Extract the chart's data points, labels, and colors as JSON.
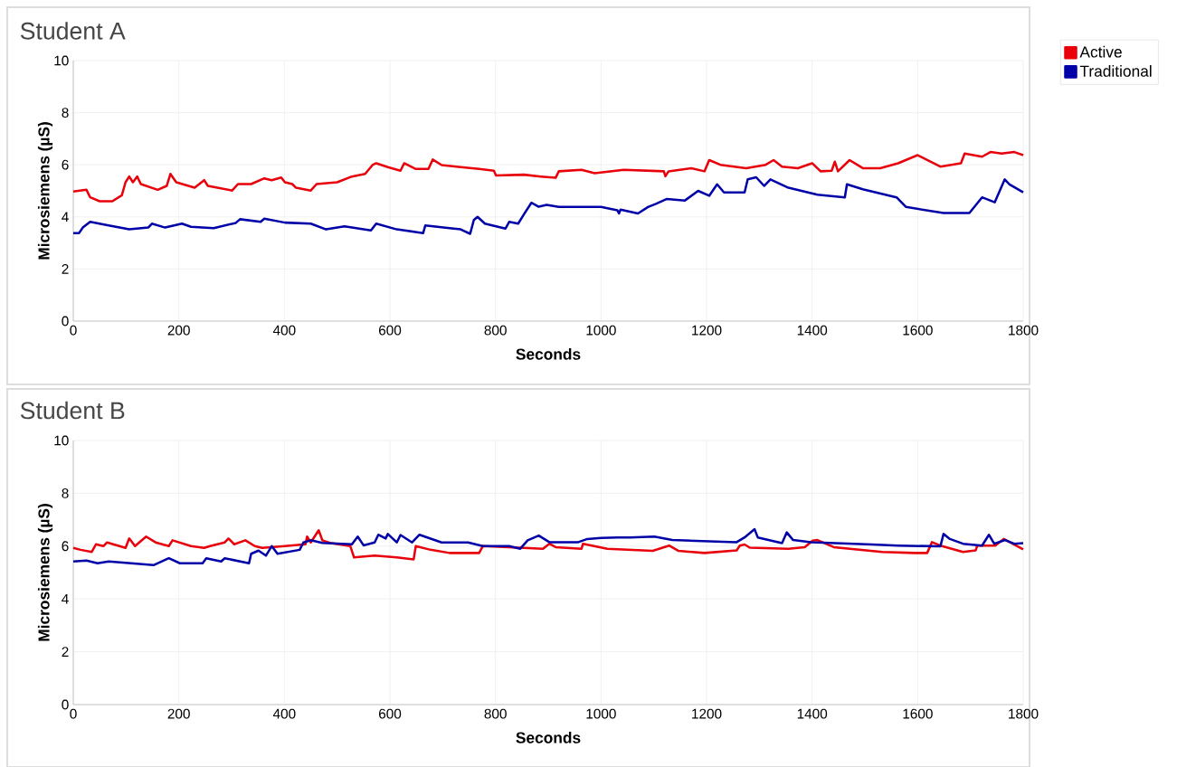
{
  "chart_data": [
    {
      "type": "line",
      "title": "Student A",
      "xlabel": "Seconds",
      "ylabel": "Microsiemens (µS)",
      "xlim": [
        0,
        1800
      ],
      "ylim": [
        0,
        10
      ],
      "xticks": [
        0,
        200,
        400,
        600,
        800,
        1000,
        1200,
        1400,
        1600,
        1800
      ],
      "yticks": [
        0,
        2,
        4,
        6,
        8,
        10
      ],
      "grid": true,
      "legend": "top right",
      "series": [
        {
          "name": "Active",
          "color": "#e8000b",
          "x": [
            0,
            25,
            32,
            50,
            74,
            92,
            99,
            106,
            113,
            121,
            128,
            160,
            177,
            184,
            195,
            230,
            248,
            255,
            301,
            312,
            337,
            362,
            376,
            394,
            401,
            415,
            422,
            450,
            461,
            500,
            528,
            553,
            567,
            574,
            596,
            620,
            627,
            649,
            673,
            681,
            698,
            734,
            769,
            797,
            801,
            854,
            886,
            914,
            920,
            963,
            988,
            1043,
            1119,
            1122,
            1128,
            1171,
            1196,
            1205,
            1226,
            1275,
            1312,
            1327,
            1343,
            1373,
            1400,
            1416,
            1437,
            1443,
            1449,
            1471,
            1496,
            1529,
            1563,
            1600,
            1624,
            1643,
            1682,
            1689,
            1722,
            1738,
            1759,
            1783,
            1800
          ],
          "values": [
            4.97,
            5.04,
            4.75,
            4.6,
            4.6,
            4.83,
            5.33,
            5.55,
            5.33,
            5.55,
            5.26,
            5.04,
            5.19,
            5.65,
            5.33,
            5.12,
            5.41,
            5.19,
            5.01,
            5.26,
            5.26,
            5.48,
            5.41,
            5.51,
            5.33,
            5.26,
            5.12,
            5.01,
            5.26,
            5.33,
            5.55,
            5.65,
            5.99,
            6.06,
            5.91,
            5.77,
            6.06,
            5.84,
            5.84,
            6.2,
            5.99,
            5.91,
            5.84,
            5.77,
            5.59,
            5.62,
            5.55,
            5.5,
            5.75,
            5.81,
            5.68,
            5.81,
            5.75,
            5.56,
            5.75,
            5.87,
            5.75,
            6.18,
            6.0,
            5.87,
            6.0,
            6.18,
            5.93,
            5.87,
            6.06,
            5.75,
            5.77,
            6.12,
            5.75,
            6.18,
            5.87,
            5.87,
            6.06,
            6.37,
            6.12,
            5.93,
            6.06,
            6.43,
            6.31,
            6.49,
            6.43,
            6.49,
            6.37
          ]
        },
        {
          "name": "Traditional",
          "color": "#0000a8",
          "x": [
            0,
            11,
            18,
            32,
            67,
            106,
            142,
            149,
            174,
            206,
            223,
            266,
            308,
            316,
            355,
            362,
            401,
            450,
            479,
            514,
            564,
            574,
            613,
            663,
            667,
            713,
            734,
            752,
            759,
            766,
            780,
            819,
            826,
            843,
            854,
            868,
            882,
            897,
            920,
            1000,
            1031,
            1034,
            1037,
            1070,
            1089,
            1104,
            1125,
            1159,
            1184,
            1205,
            1220,
            1233,
            1272,
            1278,
            1294,
            1309,
            1321,
            1355,
            1410,
            1462,
            1466,
            1496,
            1560,
            1578,
            1649,
            1698,
            1722,
            1746,
            1765,
            1774,
            1800
          ],
          "values": [
            3.38,
            3.38,
            3.59,
            3.81,
            3.67,
            3.52,
            3.59,
            3.74,
            3.59,
            3.74,
            3.62,
            3.57,
            3.77,
            3.91,
            3.81,
            3.93,
            3.78,
            3.74,
            3.52,
            3.64,
            3.48,
            3.74,
            3.52,
            3.38,
            3.67,
            3.57,
            3.52,
            3.35,
            3.88,
            4.0,
            3.74,
            3.55,
            3.81,
            3.74,
            4.1,
            4.54,
            4.39,
            4.46,
            4.38,
            4.38,
            4.25,
            4.13,
            4.28,
            4.13,
            4.38,
            4.5,
            4.69,
            4.63,
            5.0,
            4.81,
            5.25,
            4.94,
            4.94,
            5.44,
            5.52,
            5.19,
            5.44,
            5.12,
            4.85,
            4.75,
            5.25,
            5.06,
            4.75,
            4.38,
            4.15,
            4.15,
            4.75,
            4.56,
            5.44,
            5.25,
            4.94
          ]
        }
      ]
    },
    {
      "type": "line",
      "title": "Student B",
      "xlabel": "Seconds",
      "ylabel": "Microsiemens (µS)",
      "xlim": [
        0,
        1800
      ],
      "ylim": [
        0,
        10
      ],
      "xticks": [
        0,
        200,
        400,
        600,
        800,
        1000,
        1200,
        1400,
        1600,
        1800
      ],
      "yticks": [
        0,
        2,
        4,
        6,
        8,
        10
      ],
      "grid": true,
      "series": [
        {
          "color": "#e8000b",
          "x": [
            0,
            14,
            35,
            43,
            57,
            64,
            99,
            106,
            117,
            138,
            156,
            181,
            188,
            223,
            248,
            259,
            287,
            294,
            305,
            326,
            344,
            358,
            401,
            440,
            443,
            450,
            465,
            472,
            486,
            525,
            532,
            571,
            613,
            645,
            649,
            677,
            713,
            769,
            776,
            854,
            890,
            902,
            914,
            963,
            966,
            1012,
            1098,
            1129,
            1147,
            1196,
            1257,
            1263,
            1272,
            1282,
            1355,
            1386,
            1401,
            1410,
            1441,
            1533,
            1594,
            1618,
            1627,
            1643,
            1686,
            1710,
            1713,
            1747,
            1763,
            1800
          ],
          "values": [
            5.93,
            5.86,
            5.78,
            6.07,
            6.0,
            6.14,
            5.93,
            6.29,
            6.0,
            6.36,
            6.14,
            6.0,
            6.22,
            6.0,
            5.93,
            6.0,
            6.14,
            6.29,
            6.07,
            6.22,
            6.0,
            5.93,
            6.0,
            6.07,
            6.36,
            6.14,
            6.6,
            6.22,
            6.12,
            6.0,
            5.57,
            5.64,
            5.57,
            5.5,
            6.0,
            5.86,
            5.74,
            5.74,
            6.0,
            5.93,
            5.9,
            6.09,
            5.96,
            5.9,
            6.09,
            5.9,
            5.82,
            6.02,
            5.82,
            5.74,
            5.84,
            6.02,
            6.06,
            5.94,
            5.9,
            5.96,
            6.21,
            6.23,
            5.96,
            5.78,
            5.74,
            5.74,
            6.15,
            6.02,
            5.78,
            5.84,
            6.02,
            6.02,
            6.27,
            5.88
          ]
        },
        {
          "color": "#0000a8",
          "x": [
            0,
            25,
            46,
            67,
            152,
            181,
            202,
            245,
            252,
            280,
            287,
            333,
            337,
            351,
            365,
            376,
            387,
            429,
            436,
            450,
            472,
            528,
            539,
            550,
            571,
            578,
            592,
            596,
            613,
            620,
            642,
            656,
            698,
            748,
            776,
            826,
            847,
            861,
            882,
            902,
            957,
            974,
            1000,
            1031,
            1055,
            1101,
            1135,
            1257,
            1272,
            1291,
            1297,
            1343,
            1352,
            1364,
            1398,
            1514,
            1563,
            1643,
            1649,
            1661,
            1686,
            1722,
            1735,
            1745,
            1766,
            1783,
            1800
          ],
          "values": [
            5.42,
            5.45,
            5.35,
            5.42,
            5.28,
            5.54,
            5.35,
            5.35,
            5.54,
            5.42,
            5.54,
            5.35,
            5.71,
            5.83,
            5.64,
            6.0,
            5.71,
            5.86,
            6.14,
            6.22,
            6.12,
            6.07,
            6.36,
            6.03,
            6.14,
            6.43,
            6.29,
            6.46,
            6.14,
            6.42,
            6.14,
            6.43,
            6.14,
            6.14,
            6.0,
            6.0,
            5.9,
            6.22,
            6.4,
            6.15,
            6.15,
            6.27,
            6.31,
            6.33,
            6.33,
            6.36,
            6.23,
            6.15,
            6.33,
            6.64,
            6.33,
            6.11,
            6.52,
            6.23,
            6.15,
            6.06,
            6.02,
            5.99,
            6.46,
            6.27,
            6.09,
            6.02,
            6.43,
            6.09,
            6.23,
            6.09,
            6.11
          ]
        }
      ]
    }
  ]
}
